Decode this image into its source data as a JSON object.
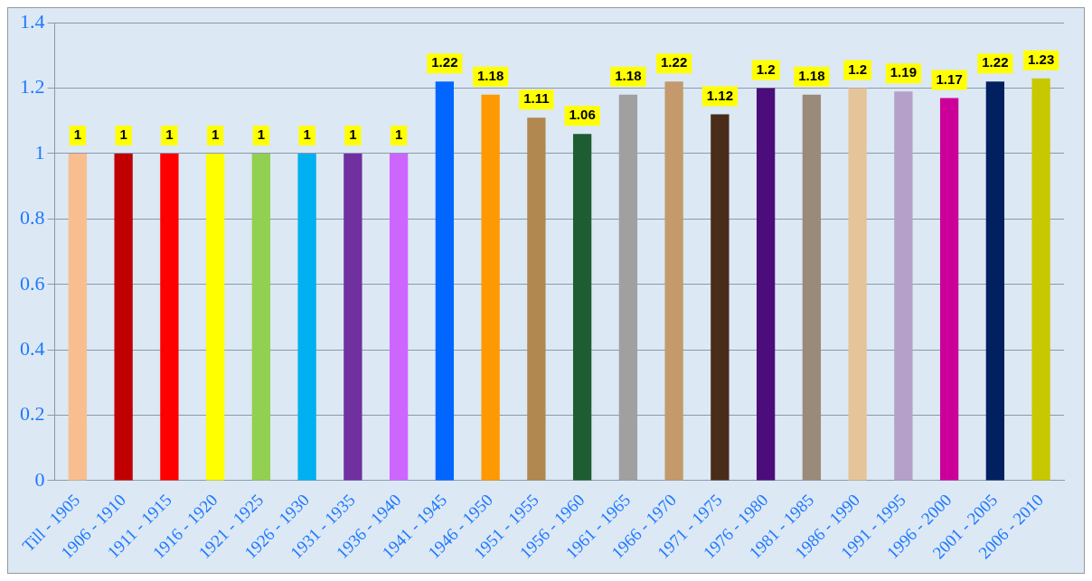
{
  "chart_data": {
    "type": "bar",
    "categories": [
      "Till - 1905",
      "1906 - 1910",
      "1911 - 1915",
      "1916 - 1920",
      "1921 - 1925",
      "1926 - 1930",
      "1931 - 1935",
      "1936 - 1940",
      "1941 - 1945",
      "1946 - 1950",
      "1951 - 1955",
      "1956 - 1960",
      "1961 - 1965",
      "1966 - 1970",
      "1971 - 1975",
      "1976 - 1980",
      "1981 - 1985",
      "1986 - 1990",
      "1991 - 1995",
      "1996 - 2000",
      "2001 - 2005",
      "2006 - 2010"
    ],
    "values": [
      1,
      1,
      1,
      1,
      1,
      1,
      1,
      1,
      1.22,
      1.18,
      1.11,
      1.06,
      1.18,
      1.22,
      1.12,
      1.2,
      1.18,
      1.2,
      1.19,
      1.17,
      1.22,
      1.23
    ],
    "colors": [
      "#f9be8f",
      "#c00000",
      "#ff0000",
      "#ffff00",
      "#92d050",
      "#00b0f0",
      "#7030a0",
      "#cc66ff",
      "#0066ff",
      "#ff9900",
      "#b08850",
      "#1e5c32",
      "#a0a0a0",
      "#c49a6c",
      "#4a2c1a",
      "#4b0d7a",
      "#9a8a7a",
      "#e6c49a",
      "#b4a0c8",
      "#cc0099",
      "#002060",
      "#c8c800"
    ],
    "ylim": [
      0,
      1.4
    ],
    "yticks": [
      0,
      0.2,
      0.4,
      0.6,
      0.8,
      1,
      1.2,
      1.4
    ],
    "grid": "y",
    "data_labels": true,
    "legend": false
  }
}
